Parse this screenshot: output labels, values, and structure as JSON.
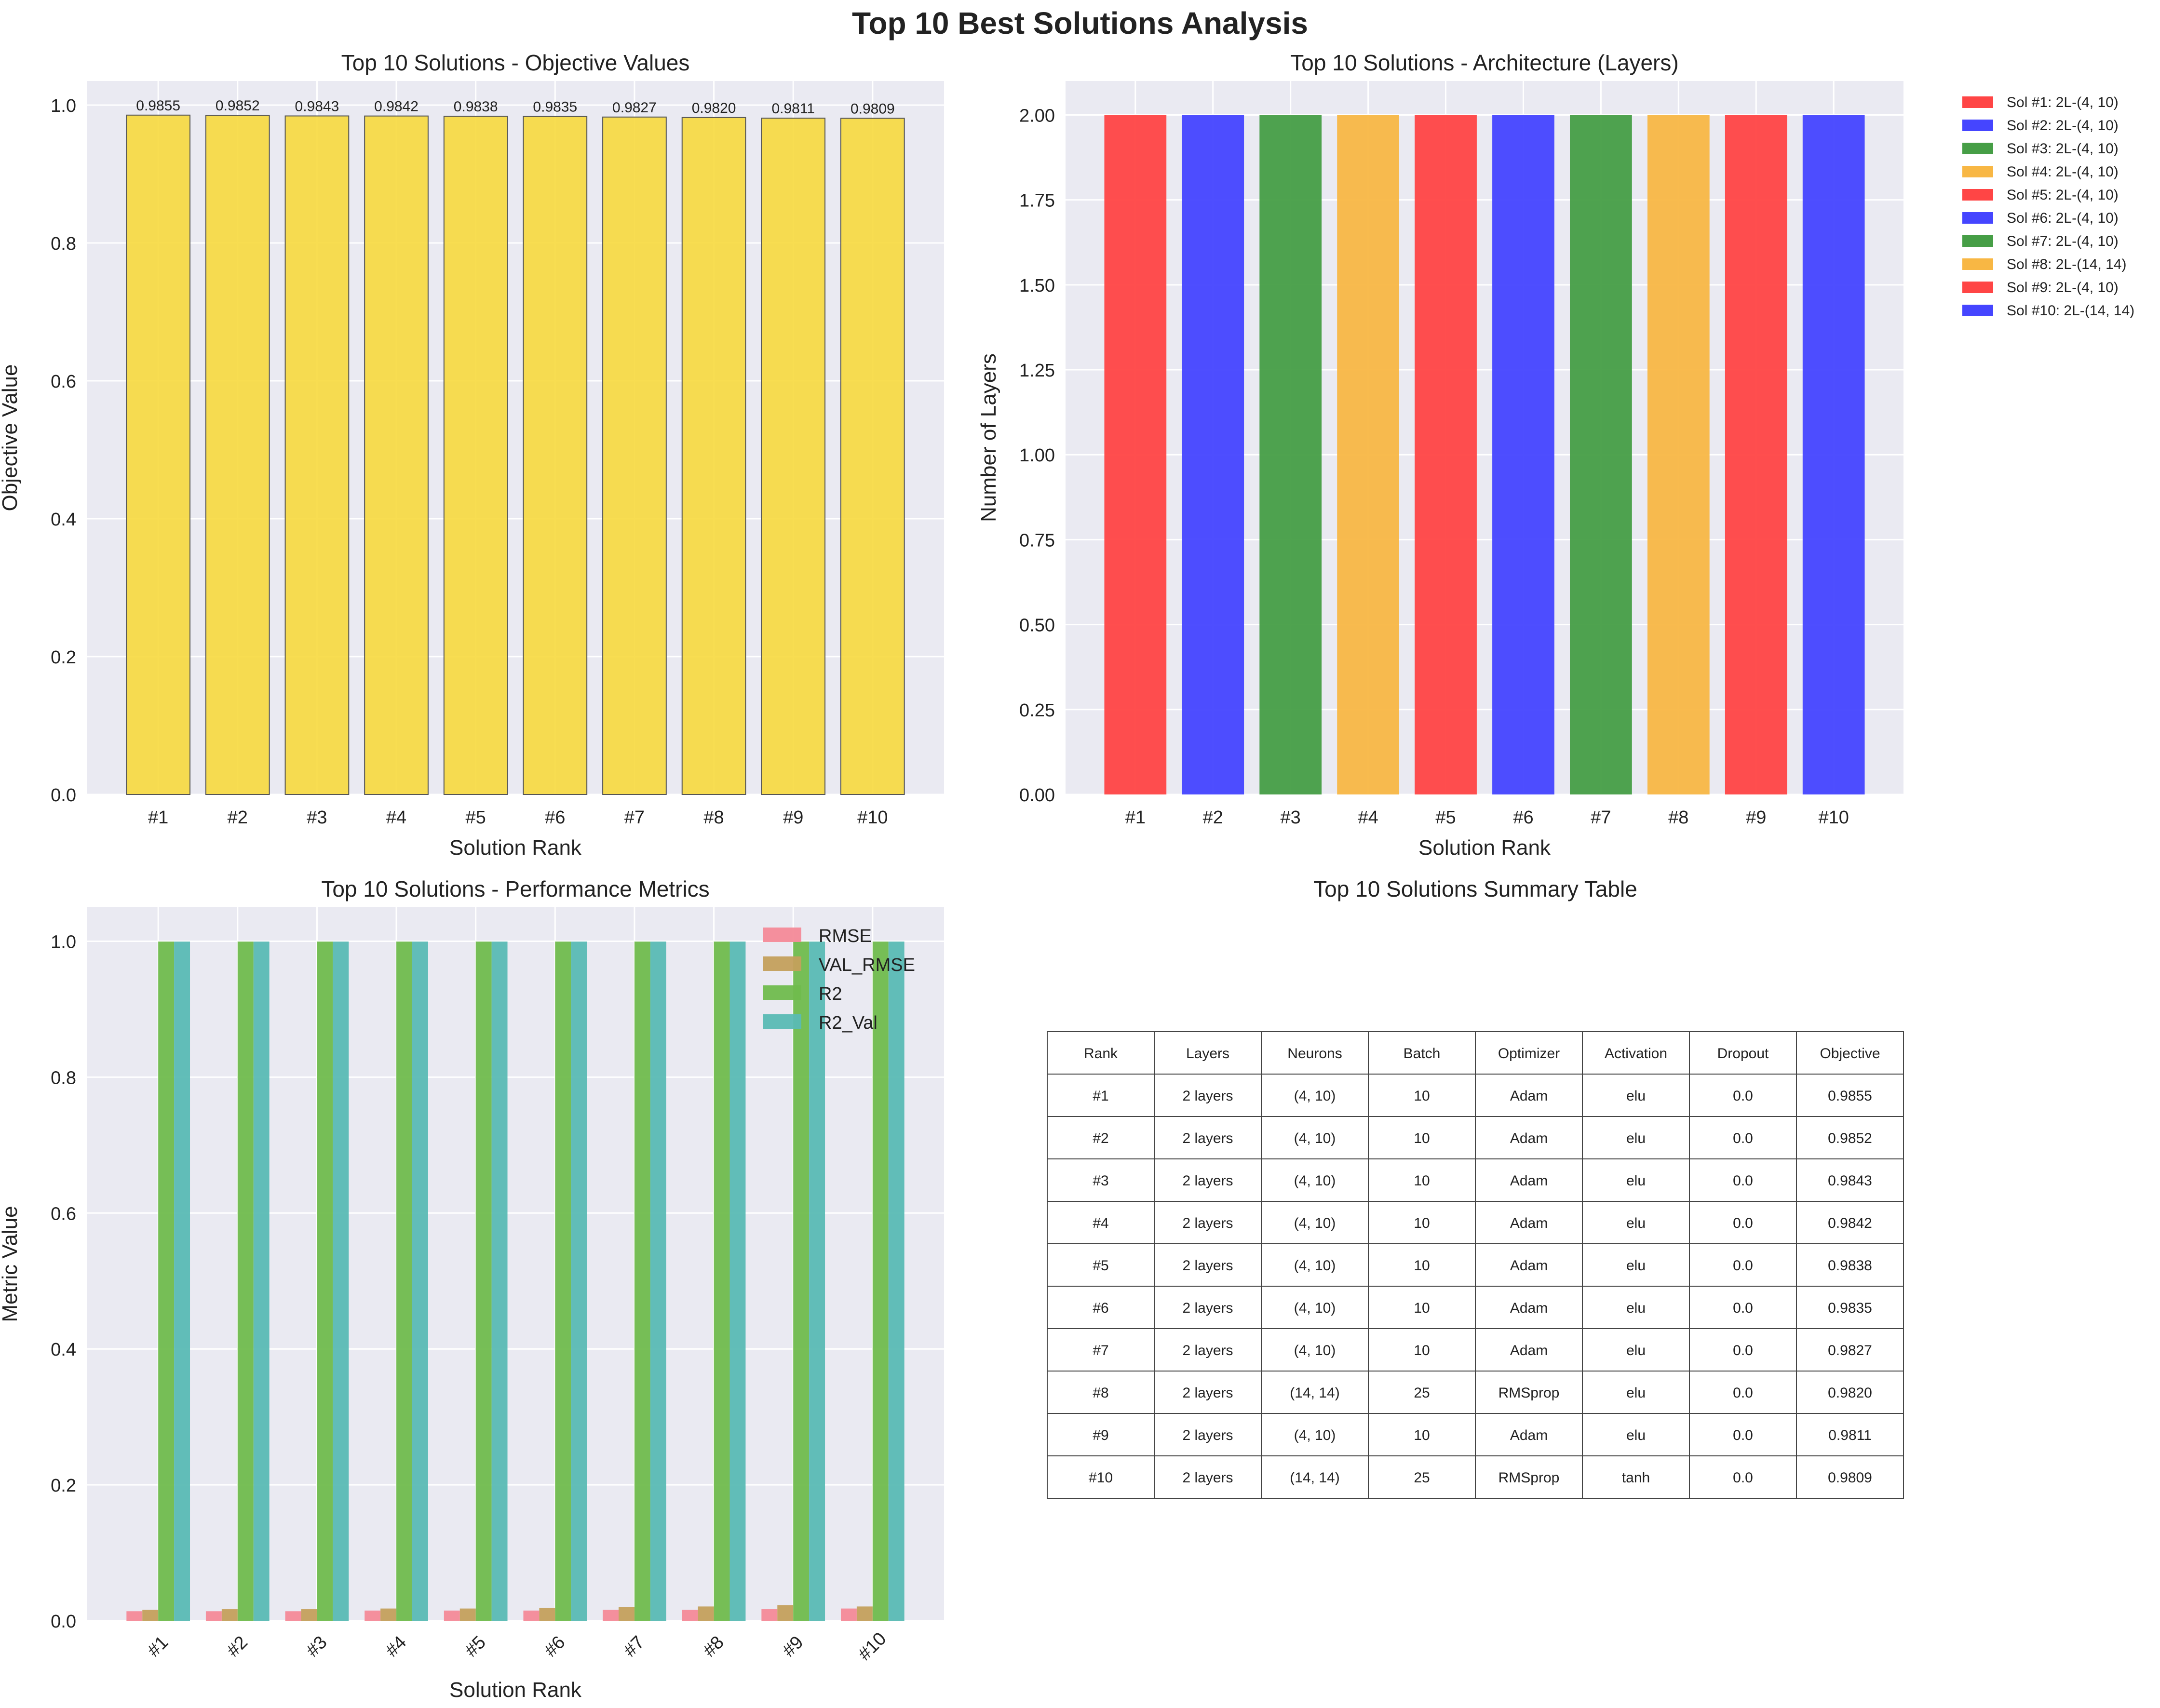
{
  "figure": {
    "suptitle": "Top 10 Best Solutions Analysis"
  },
  "colors": {
    "panel_bg": "#EAEAF2",
    "grid": "#FFFFFF",
    "yellow_bar": "#F7D93E",
    "red": "#FF4545",
    "blue": "#4545FF",
    "green": "#469E46",
    "orange": "#F8B744",
    "rmse": "#F48A98",
    "val_rmse": "#C4A05C",
    "r2": "#70BC4D",
    "r2_val": "#5ABAB4"
  },
  "chart_data": [
    {
      "id": "objective",
      "type": "bar",
      "title": "Top 10 Solutions - Objective Values",
      "xlabel": "Solution Rank",
      "ylabel": "Objective Value",
      "categories": [
        "#1",
        "#2",
        "#3",
        "#4",
        "#5",
        "#6",
        "#7",
        "#8",
        "#9",
        "#10"
      ],
      "values": [
        0.9855,
        0.9852,
        0.9843,
        0.9842,
        0.9838,
        0.9835,
        0.9827,
        0.982,
        0.9811,
        0.9809
      ],
      "data_labels": [
        "0.9855",
        "0.9852",
        "0.9843",
        "0.9842",
        "0.9838",
        "0.9835",
        "0.9827",
        "0.9820",
        "0.9811",
        "0.9809"
      ],
      "ylim": [
        0,
        1.035
      ],
      "yticks": [
        0.0,
        0.2,
        0.4,
        0.6,
        0.8,
        1.0
      ],
      "ytick_labels": [
        "0.0",
        "0.2",
        "0.4",
        "0.6",
        "0.8",
        "1.0"
      ],
      "grid": true
    },
    {
      "id": "architecture",
      "type": "bar",
      "title": "Top 10 Solutions - Architecture (Layers)",
      "xlabel": "Solution Rank",
      "ylabel": "Number of Layers",
      "categories": [
        "#1",
        "#2",
        "#3",
        "#4",
        "#5",
        "#6",
        "#7",
        "#8",
        "#9",
        "#10"
      ],
      "values": [
        2,
        2,
        2,
        2,
        2,
        2,
        2,
        2,
        2,
        2
      ],
      "bar_colors": [
        "red",
        "blue",
        "green",
        "orange",
        "red",
        "blue",
        "green",
        "orange",
        "red",
        "blue"
      ],
      "ylim": [
        0,
        2.1
      ],
      "yticks": [
        0,
        0.25,
        0.5,
        0.75,
        1.0,
        1.25,
        1.5,
        1.75,
        2.0
      ],
      "ytick_labels": [
        "0.00",
        "0.25",
        "0.50",
        "0.75",
        "1.00",
        "1.25",
        "1.50",
        "1.75",
        "2.00"
      ],
      "legend": [
        "Sol #1: 2L-(4, 10)",
        "Sol #2: 2L-(4, 10)",
        "Sol #3: 2L-(4, 10)",
        "Sol #4: 2L-(4, 10)",
        "Sol #5: 2L-(4, 10)",
        "Sol #6: 2L-(4, 10)",
        "Sol #7: 2L-(4, 10)",
        "Sol #8: 2L-(14, 14)",
        "Sol #9: 2L-(4, 10)",
        "Sol #10: 2L-(14, 14)"
      ],
      "legend_placement": "outside upper right",
      "grid": true
    },
    {
      "id": "metrics",
      "type": "bar",
      "title": "Top 10 Solutions - Performance Metrics",
      "xlabel": "Solution Rank",
      "ylabel": "Metric Value",
      "categories": [
        "#1",
        "#2",
        "#3",
        "#4",
        "#5",
        "#6",
        "#7",
        "#8",
        "#9",
        "#10"
      ],
      "series": [
        {
          "name": "RMSE",
          "color": "rmse",
          "values": [
            0.014,
            0.014,
            0.014,
            0.015,
            0.015,
            0.015,
            0.016,
            0.016,
            0.017,
            0.018
          ]
        },
        {
          "name": "VAL_RMSE",
          "color": "val_rmse",
          "values": [
            0.016,
            0.017,
            0.017,
            0.018,
            0.018,
            0.019,
            0.02,
            0.021,
            0.023,
            0.021
          ]
        },
        {
          "name": "R2",
          "color": "r2",
          "values": [
            0.9995,
            0.9995,
            0.9995,
            0.9995,
            0.9995,
            0.9995,
            0.9995,
            0.9995,
            0.9995,
            0.9995
          ]
        },
        {
          "name": "R2_Val",
          "color": "r2_val",
          "values": [
            0.9995,
            0.9995,
            0.9995,
            0.9995,
            0.9995,
            0.9995,
            0.9995,
            0.9995,
            0.9995,
            0.9995
          ]
        }
      ],
      "ylim": [
        0,
        1.05
      ],
      "yticks": [
        0.0,
        0.2,
        0.4,
        0.6,
        0.8,
        1.0
      ],
      "ytick_labels": [
        "0.0",
        "0.2",
        "0.4",
        "0.6",
        "0.8",
        "1.0"
      ],
      "xtick_rotation": 45,
      "legend_placement": "upper right",
      "grid": true
    },
    {
      "id": "summary",
      "type": "table",
      "title": "Top 10 Solutions Summary Table",
      "columns": [
        "Rank",
        "Layers",
        "Neurons",
        "Batch",
        "Optimizer",
        "Activation",
        "Dropout",
        "Objective"
      ],
      "rows": [
        [
          "#1",
          "2 layers",
          "(4, 10)",
          "10",
          "Adam",
          "elu",
          "0.0",
          "0.9855"
        ],
        [
          "#2",
          "2 layers",
          "(4, 10)",
          "10",
          "Adam",
          "elu",
          "0.0",
          "0.9852"
        ],
        [
          "#3",
          "2 layers",
          "(4, 10)",
          "10",
          "Adam",
          "elu",
          "0.0",
          "0.9843"
        ],
        [
          "#4",
          "2 layers",
          "(4, 10)",
          "10",
          "Adam",
          "elu",
          "0.0",
          "0.9842"
        ],
        [
          "#5",
          "2 layers",
          "(4, 10)",
          "10",
          "Adam",
          "elu",
          "0.0",
          "0.9838"
        ],
        [
          "#6",
          "2 layers",
          "(4, 10)",
          "10",
          "Adam",
          "elu",
          "0.0",
          "0.9835"
        ],
        [
          "#7",
          "2 layers",
          "(4, 10)",
          "10",
          "Adam",
          "elu",
          "0.0",
          "0.9827"
        ],
        [
          "#8",
          "2 layers",
          "(14, 14)",
          "25",
          "RMSprop",
          "elu",
          "0.0",
          "0.9820"
        ],
        [
          "#9",
          "2 layers",
          "(4, 10)",
          "10",
          "Adam",
          "elu",
          "0.0",
          "0.9811"
        ],
        [
          "#10",
          "2 layers",
          "(14, 14)",
          "25",
          "RMSprop",
          "tanh",
          "0.0",
          "0.9809"
        ]
      ]
    }
  ]
}
